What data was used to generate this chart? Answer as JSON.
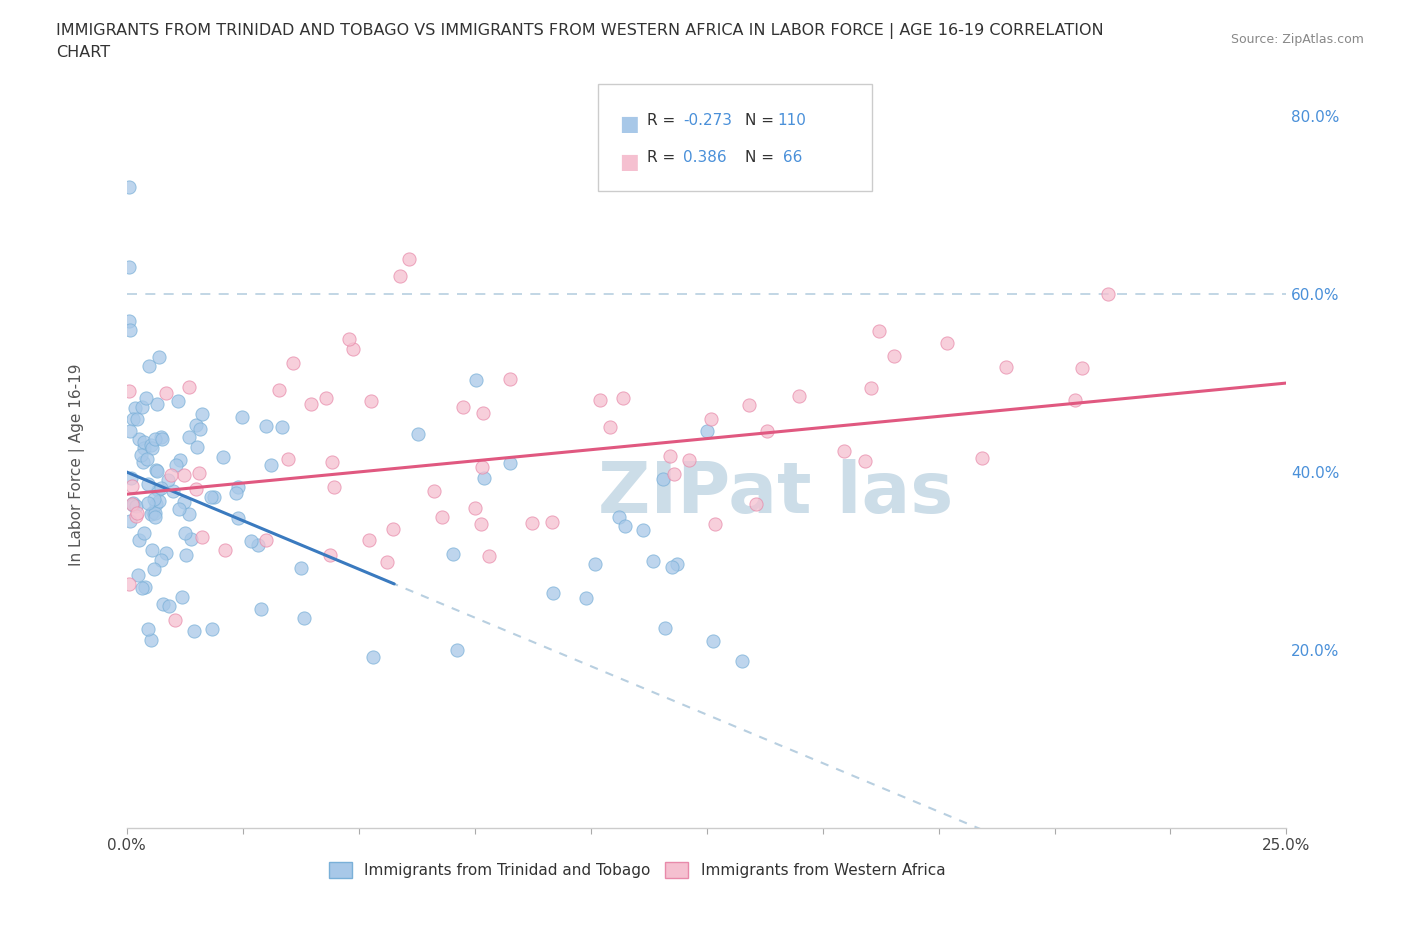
{
  "title_line1": "IMMIGRANTS FROM TRINIDAD AND TOBAGO VS IMMIGRANTS FROM WESTERN AFRICA IN LABOR FORCE | AGE 16-19 CORRELATION",
  "title_line2": "CHART",
  "source_text": "Source: ZipAtlas.com",
  "ylabel": "In Labor Force | Age 16-19",
  "xlim": [
    0.0,
    0.25
  ],
  "ylim": [
    0.0,
    0.8
  ],
  "xticks": [
    0.0,
    0.025,
    0.05,
    0.075,
    0.1,
    0.125,
    0.15,
    0.175,
    0.2,
    0.225,
    0.25
  ],
  "xticklabels_show": {
    "0.0": "0.0%",
    "0.25": "25.0%"
  },
  "yticks": [
    0.0,
    0.2,
    0.4,
    0.6,
    0.8
  ],
  "yticklabels": [
    "",
    "20.0%",
    "40.0%",
    "60.0%",
    "80.0%"
  ],
  "blue_color": "#a8c8e8",
  "blue_edge_color": "#7ab0d8",
  "pink_color": "#f5c0d0",
  "pink_edge_color": "#e88aaa",
  "blue_R": -0.273,
  "blue_N": 110,
  "pink_R": 0.386,
  "pink_N": 66,
  "blue_line_color": "#3a7abf",
  "pink_line_color": "#e05880",
  "dashed_line_color": "#b8cfe0",
  "watermark_color": "#ccdde8",
  "legend_label_blue": "Immigrants from Trinidad and Tobago",
  "legend_label_pink": "Immigrants from Western Africa",
  "dot_size": 90,
  "dot_alpha": 0.75
}
